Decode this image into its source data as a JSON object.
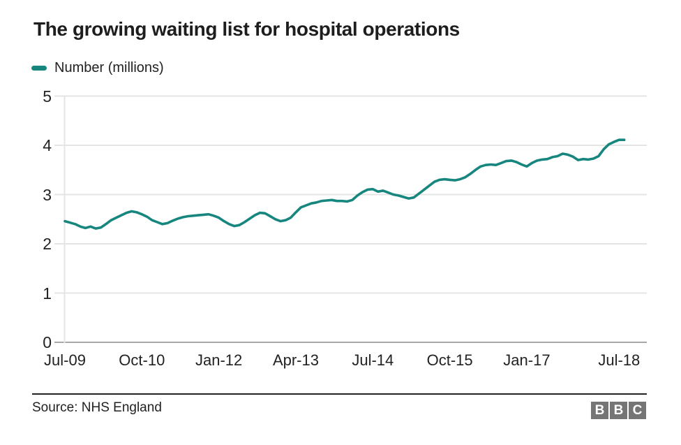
{
  "title": "The growing waiting list for hospital operations",
  "legend": {
    "label": "Number (millions)",
    "swatch_color": "#17867e"
  },
  "footer": {
    "source": "Source: NHS England",
    "logo_letters": [
      "B",
      "B",
      "C"
    ]
  },
  "colors": {
    "line": "#17867e",
    "gridline": "#e4e4e4",
    "baseline": "#a8a8a8",
    "text": "#222222",
    "logo_box": "#757575"
  },
  "chart_data": {
    "type": "line",
    "title": "The growing waiting list for hospital operations",
    "xlabel": "",
    "ylabel": "Number (millions)",
    "ylim": [
      0,
      5
    ],
    "y_ticks": [
      0,
      1,
      2,
      3,
      4,
      5
    ],
    "grid": "horizontal",
    "legend_position": "top-left",
    "x_description": "Monthly data, one value per month starting Jul-2009 and ending Aug-2018",
    "x_tick_labels": [
      "Jul-09",
      "Oct-10",
      "Jan-12",
      "Apr-13",
      "Jul-14",
      "Oct-15",
      "Jan-17",
      "Jul-18"
    ],
    "x_tick_month_offsets": [
      0,
      15,
      30,
      45,
      60,
      75,
      90,
      108
    ],
    "series": [
      {
        "name": "Number (millions)",
        "color": "#17867e",
        "first_month": "Jul-09",
        "values": [
          2.46,
          2.43,
          2.4,
          2.35,
          2.32,
          2.35,
          2.31,
          2.33,
          2.4,
          2.48,
          2.53,
          2.58,
          2.63,
          2.66,
          2.64,
          2.6,
          2.55,
          2.48,
          2.44,
          2.4,
          2.42,
          2.47,
          2.51,
          2.54,
          2.56,
          2.57,
          2.58,
          2.59,
          2.6,
          2.57,
          2.53,
          2.46,
          2.4,
          2.36,
          2.38,
          2.44,
          2.51,
          2.58,
          2.63,
          2.62,
          2.56,
          2.5,
          2.46,
          2.48,
          2.53,
          2.64,
          2.74,
          2.78,
          2.82,
          2.84,
          2.87,
          2.88,
          2.89,
          2.87,
          2.87,
          2.86,
          2.89,
          2.98,
          3.05,
          3.1,
          3.11,
          3.06,
          3.08,
          3.04,
          3.0,
          2.98,
          2.95,
          2.92,
          2.94,
          3.02,
          3.1,
          3.18,
          3.26,
          3.3,
          3.31,
          3.3,
          3.29,
          3.31,
          3.35,
          3.42,
          3.5,
          3.57,
          3.6,
          3.61,
          3.6,
          3.64,
          3.68,
          3.69,
          3.66,
          3.61,
          3.57,
          3.64,
          3.69,
          3.71,
          3.72,
          3.76,
          3.78,
          3.83,
          3.81,
          3.77,
          3.7,
          3.72,
          3.71,
          3.73,
          3.78,
          3.92,
          4.02,
          4.07,
          4.11,
          4.11
        ]
      }
    ]
  }
}
